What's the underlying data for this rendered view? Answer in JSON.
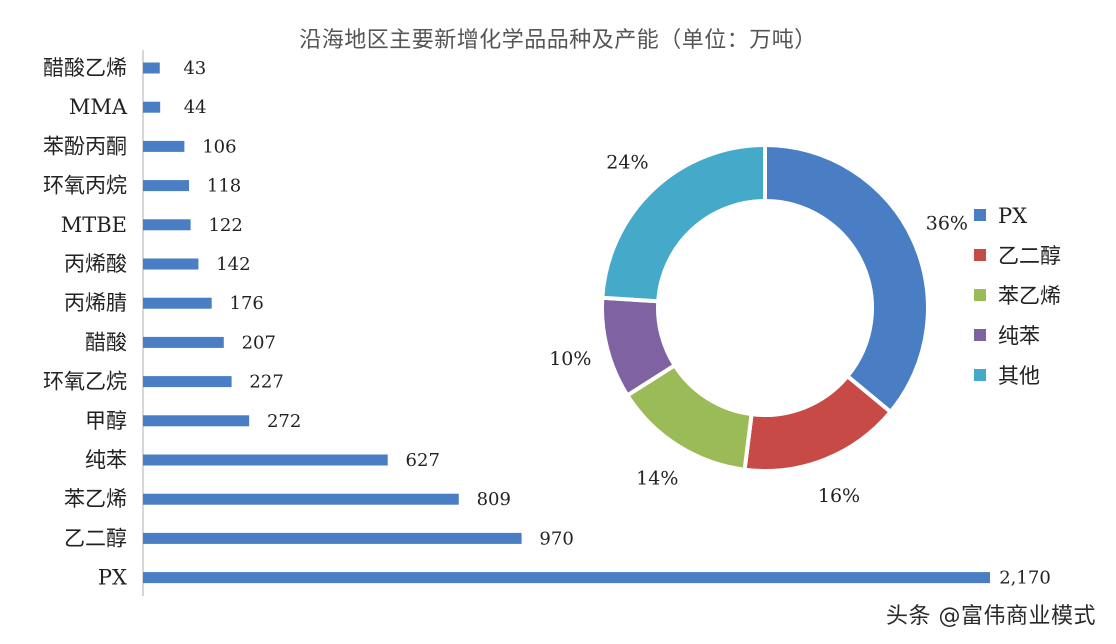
{
  "page": {
    "title": "沿海地区主要新增化学品品种及产能（单位：万吨）",
    "watermark": "头条 @富伟商业模式"
  },
  "colors": {
    "bar": "#4a7ec4",
    "axis": "#c8c8c8",
    "label": "#222222"
  },
  "chart_data": [
    {
      "type": "bar",
      "orientation": "horizontal",
      "title": "沿海地区主要新增化学品品种及产能（单位：万吨）",
      "categories": [
        "醋酸乙烯",
        "MMA",
        "苯酚丙酮",
        "环氧丙烷",
        "MTBE",
        "丙烯酸",
        "丙烯腈",
        "醋酸",
        "环氧乙烷",
        "甲醇",
        "纯苯",
        "苯乙烯",
        "乙二醇",
        "PX"
      ],
      "values": [
        43,
        44,
        106,
        118,
        122,
        142,
        176,
        207,
        227,
        272,
        627,
        809,
        970,
        2170
      ],
      "value_labels": [
        "43",
        "44",
        "106",
        "118",
        "122",
        "142",
        "176",
        "207",
        "227",
        "272",
        "627",
        "809",
        "970",
        "2,170"
      ],
      "xlim": [
        0,
        2170
      ],
      "grid": false
    },
    {
      "type": "pie",
      "style": "donut",
      "slices": [
        {
          "name": "PX",
          "value": 36,
          "label": "36%",
          "color": "#4a7ec4"
        },
        {
          "name": "乙二醇",
          "value": 16,
          "label": "16%",
          "color": "#c84a47"
        },
        {
          "name": "苯乙烯",
          "value": 14,
          "label": "14%",
          "color": "#9bbb59"
        },
        {
          "name": "纯苯",
          "value": 10,
          "label": "10%",
          "color": "#7e62a2"
        },
        {
          "name": "其他",
          "value": 24,
          "label": "24%",
          "color": "#45a9c9"
        }
      ],
      "legend_position": "right"
    }
  ]
}
